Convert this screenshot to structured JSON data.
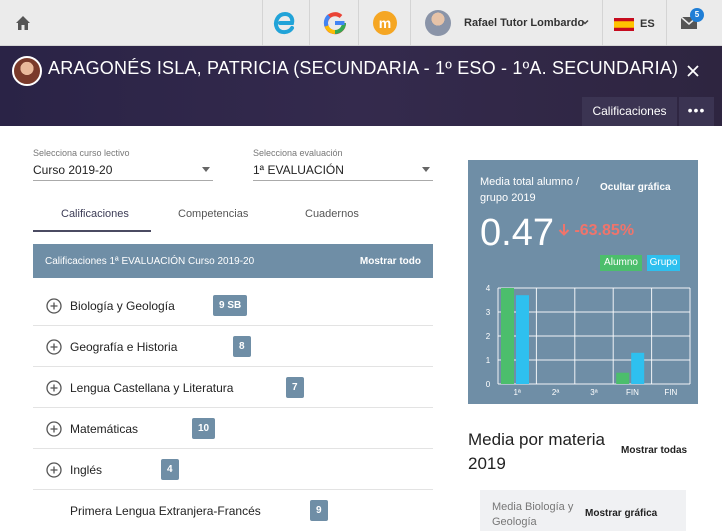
{
  "topbar": {
    "user_name": "Rafael Tutor Lombardo",
    "language": "ES",
    "mail_count": "5",
    "apps": [
      "edvoice-icon",
      "google-icon",
      "m-app-icon"
    ]
  },
  "header": {
    "student_name": "ARAGONÉS ISLA, PATRICIA (SECUNDARIA - 1º ESO - 1ºA. SECUNDARIA)",
    "tab_label": "Calificaciones",
    "more_label": "•••"
  },
  "filters": {
    "course_label": "Selecciona curso lectivo",
    "course_value": "Curso 2019-20",
    "eval_label": "Selecciona evaluación",
    "eval_value": "1ª EVALUACIÓN"
  },
  "tabs": [
    {
      "label": "Calificaciones"
    },
    {
      "label": "Competencias"
    },
    {
      "label": "Cuadernos"
    }
  ],
  "table": {
    "title": "Calificaciones 1ª EVALUACIÓN Curso 2019-20",
    "show_all": "Mostrar todo",
    "rows": [
      {
        "name": "Biología y Geología",
        "grade": "9 SB"
      },
      {
        "name": "Geografía e Historia",
        "grade": "8"
      },
      {
        "name": "Lengua Castellana y Literatura",
        "grade": "7"
      },
      {
        "name": "Matemáticas",
        "grade": "10"
      },
      {
        "name": "Inglés",
        "grade": "4"
      },
      {
        "name": "Primera Lengua Extranjera-Francés",
        "grade": "9"
      }
    ]
  },
  "card": {
    "title": "Media total alumno / grupo 2019",
    "hide_label": "Ocultar gráfica",
    "value": "0.47",
    "change": "-63.85%",
    "legend_alumno": "Alumno",
    "legend_grupo": "Grupo",
    "colors": {
      "alumno": "#4cbe6c",
      "grupo": "#2ec0ef",
      "negative": "#f0746b"
    }
  },
  "chart_data": {
    "type": "bar",
    "categories": [
      "1ª",
      "2ª",
      "3ª",
      "FIN",
      "FIN"
    ],
    "series": [
      {
        "name": "Alumno",
        "values": [
          4,
          0,
          0,
          0.47,
          0
        ]
      },
      {
        "name": "Grupo",
        "values": [
          3.7,
          0,
          0,
          1.3,
          0
        ]
      }
    ],
    "yticks": [
      "0",
      "1",
      "2",
      "3",
      "4"
    ],
    "ylim": [
      0,
      4
    ],
    "grid": true
  },
  "media": {
    "title": "Media por materia 2019",
    "show_all": "Mostrar todas",
    "mini_title": "Media Biología y Geología",
    "mini_show": "Mostrar gráfica"
  }
}
